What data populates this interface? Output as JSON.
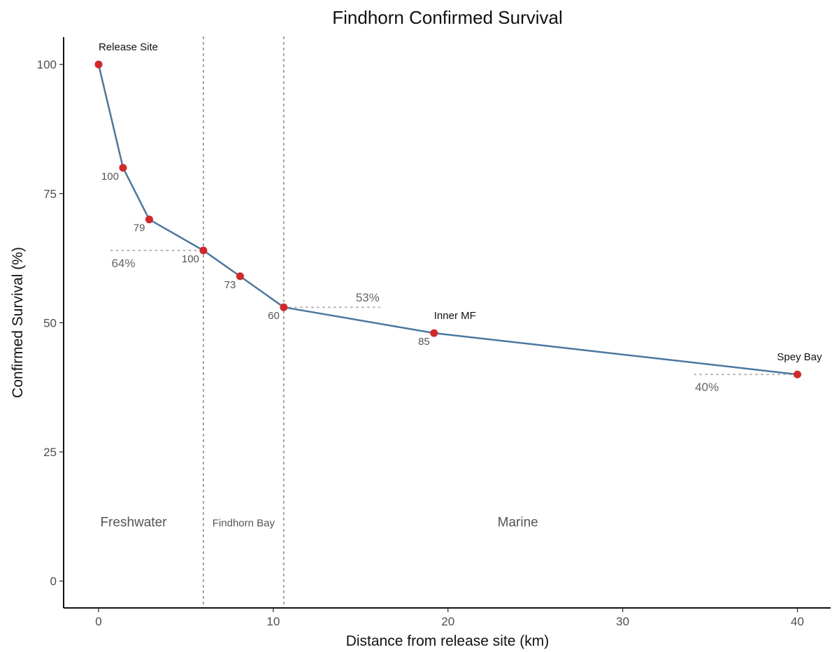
{
  "chart_data": {
    "type": "line",
    "title": "Findhorn Confirmed Survival",
    "xlabel": "Distance from release site (km)",
    "ylabel": "Confirmed Survival (%)",
    "xlim": [
      -2,
      41.9
    ],
    "ylim": [
      -5.2,
      105.3
    ],
    "x_ticks": [
      0,
      10,
      20,
      30,
      40
    ],
    "y_ticks": [
      0,
      25,
      50,
      75,
      100
    ],
    "grid": false,
    "series": [
      {
        "color": "#4a78a0",
        "marker_color": "#d62728",
        "points": [
          {
            "x": 0,
            "y": 100,
            "label": ""
          },
          {
            "x": 1.4,
            "y": 80,
            "label": "100"
          },
          {
            "x": 2.9,
            "y": 70,
            "label": "79"
          },
          {
            "x": 6.0,
            "y": 64,
            "label": "100"
          },
          {
            "x": 8.1,
            "y": 59,
            "label": "73"
          },
          {
            "x": 10.6,
            "y": 53,
            "label": "60"
          },
          {
            "x": 19.2,
            "y": 48,
            "label": "85"
          },
          {
            "x": 40.0,
            "y": 40,
            "label": ""
          }
        ]
      }
    ],
    "site_labels": [
      {
        "x": 0,
        "y": 100,
        "text": "Release Site"
      },
      {
        "x": 19.2,
        "y": 48,
        "text": "Inner MF"
      },
      {
        "x": 40.0,
        "y": 40,
        "text": "Spey Bay"
      }
    ],
    "reference_segments": [
      {
        "x_start": 0.7,
        "x_end": 6.0,
        "y": 64,
        "label": "64%"
      },
      {
        "x_start": 10.6,
        "x_end": 16.1,
        "y": 53,
        "label": "53%"
      },
      {
        "x_start": 34.1,
        "x_end": 40.0,
        "y": 40,
        "label": "40%"
      }
    ],
    "vertical_lines": [
      6.0,
      10.6
    ],
    "regions": [
      {
        "text": "Freshwater",
        "x": 2.0,
        "y": 11.5
      },
      {
        "text": "Findhorn Bay",
        "x": 8.3,
        "y": 11.5
      },
      {
        "text": "Marine",
        "x": 24.0,
        "y": 11.5
      }
    ]
  }
}
